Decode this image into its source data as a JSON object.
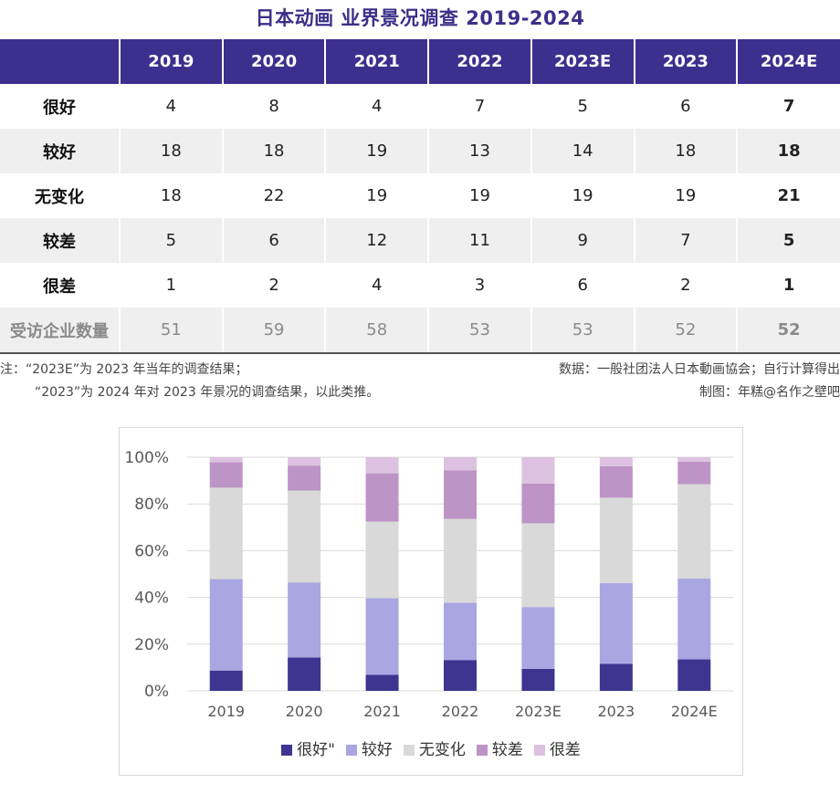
{
  "title": "日本动画 业界景况调查 2019-2024",
  "table": {
    "header": [
      "",
      "2019",
      "2020",
      "2021",
      "2022",
      "2023E",
      "2023",
      "2024E"
    ],
    "rows": [
      {
        "label": "很好",
        "values": [
          "4",
          "8",
          "4",
          "7",
          "5",
          "6",
          "7"
        ]
      },
      {
        "label": "较好",
        "values": [
          "18",
          "18",
          "19",
          "13",
          "14",
          "18",
          "18"
        ]
      },
      {
        "label": "无变化",
        "values": [
          "18",
          "22",
          "19",
          "19",
          "19",
          "19",
          "21"
        ]
      },
      {
        "label": "较差",
        "values": [
          "5",
          "6",
          "12",
          "11",
          "9",
          "7",
          "5"
        ]
      },
      {
        "label": "很差",
        "values": [
          "1",
          "2",
          "4",
          "3",
          "6",
          "2",
          "1"
        ]
      },
      {
        "label": "受访企业数量",
        "values": [
          "51",
          "59",
          "58",
          "53",
          "53",
          "52",
          "52"
        ]
      }
    ]
  },
  "notes": {
    "left_1": "注：“2023E”为 2023 年当年的调查结果；",
    "left_2": "“2023”为 2024 年对 2023 年景况的调查结果，以此类推。",
    "right_1": "数据：一般社团法人日本動画協会；自行计算得出",
    "right_2": "制图：年糕@名作之壁吧"
  },
  "colors": {
    "header_bg": "#3d2f8e",
    "title": "#3b2f8a",
    "series": [
      "#3d3590",
      "#a9a6e2",
      "#d9d9d9",
      "#bd94c6",
      "#dcc2e0"
    ]
  },
  "chart_data": {
    "type": "bar",
    "stacked": true,
    "percent": true,
    "categories": [
      "2019",
      "2020",
      "2021",
      "2022",
      "2023E",
      "2023",
      "2024E"
    ],
    "series": [
      {
        "name": "很好\"",
        "values": [
          4,
          8,
          4,
          7,
          5,
          6,
          7
        ]
      },
      {
        "name": "较好",
        "values": [
          18,
          18,
          19,
          13,
          14,
          18,
          18
        ]
      },
      {
        "name": "无变化",
        "values": [
          18,
          22,
          19,
          19,
          19,
          19,
          21
        ]
      },
      {
        "name": "较差",
        "values": [
          5,
          6,
          12,
          11,
          9,
          7,
          5
        ]
      },
      {
        "name": "很差",
        "values": [
          1,
          2,
          4,
          3,
          6,
          2,
          1
        ]
      }
    ],
    "y_ticks": [
      "0%",
      "20%",
      "40%",
      "60%",
      "80%",
      "100%"
    ],
    "ylim": [
      0,
      100
    ],
    "grid": true,
    "legend": "bottom"
  }
}
